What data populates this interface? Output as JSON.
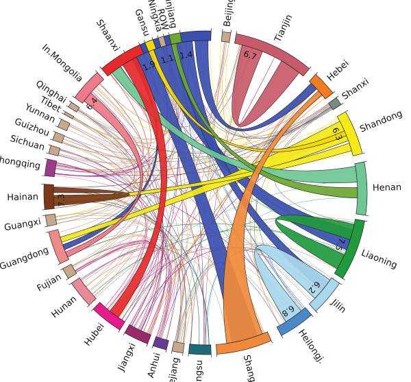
{
  "regions": [
    {
      "name": "ROW",
      "color": "#3b4fb0"
    },
    {
      "name": "Beijing",
      "color": "#c8a88c"
    },
    {
      "name": "Tianjin",
      "color": "#c85a6a"
    },
    {
      "name": "Hebei",
      "color": "#f47b20"
    },
    {
      "name": "Shanxi",
      "color": "#7a8a8a"
    },
    {
      "name": "Shandong",
      "color": "#f5ea14"
    },
    {
      "name": "Henan",
      "color": "#6ec896"
    },
    {
      "name": "Liaoning",
      "color": "#1f9a3c"
    },
    {
      "name": "Jilin",
      "color": "#a8d8ee"
    },
    {
      "name": "Heilongj.",
      "color": "#4a88c8"
    },
    {
      "name": "Shanghai",
      "color": "#f08a3a"
    },
    {
      "name": "Jiangsu",
      "color": "#1c6a7a"
    },
    {
      "name": "Zhejiang",
      "color": "#c8a88c"
    },
    {
      "name": "Anhui",
      "color": "#6a3a98"
    },
    {
      "name": "Jiangxi",
      "color": "#9a2a6a"
    },
    {
      "name": "Hubei",
      "color": "#e81a8c"
    },
    {
      "name": "Hunan",
      "color": "#e88a9a"
    },
    {
      "name": "Fujian",
      "color": "#c8a88c"
    },
    {
      "name": "Guangdong",
      "color": "#f08a8a"
    },
    {
      "name": "Guangxi",
      "color": "#c8a88c"
    },
    {
      "name": "Hainan",
      "color": "#7a3a1a"
    },
    {
      "name": "Chongqing",
      "color": "#a03a8a"
    },
    {
      "name": "Sichuan",
      "color": "#c8a88c"
    },
    {
      "name": "Guizhou",
      "color": "#c8a88c"
    },
    {
      "name": "Yunnan",
      "color": "#c8a88c"
    },
    {
      "name": "Tibet",
      "color": "#c8a88c"
    },
    {
      "name": "Qinghai",
      "color": "#c8a88c"
    },
    {
      "name": "In.Mongolia",
      "color": "#f07a8a"
    },
    {
      "name": "Shaanxi",
      "color": "#e8282a"
    },
    {
      "name": "Gansu",
      "color": "#f5d800"
    },
    {
      "name": "Ningxia",
      "color": "#c8a88c"
    },
    {
      "name": "Xinjiang",
      "color": "#6aa830"
    }
  ],
  "flow_labels": [
    {
      "from": "ROW",
      "value": "1.9"
    },
    {
      "from": "ROW",
      "value": "1.1"
    },
    {
      "from": "ROW",
      "value": "1.4"
    },
    {
      "from": "Tianjin",
      "value": "6.7"
    },
    {
      "from": "Shandong",
      "value": "6.3"
    },
    {
      "from": "Liaoning",
      "value": "7.5"
    },
    {
      "from": "Jilin",
      "value": "6.2"
    },
    {
      "from": "Heilongj.",
      "value": "6.8"
    },
    {
      "from": "In.Mongolia",
      "value": "6.4"
    },
    {
      "from": "Hainan",
      "value": "7.3"
    }
  ]
}
